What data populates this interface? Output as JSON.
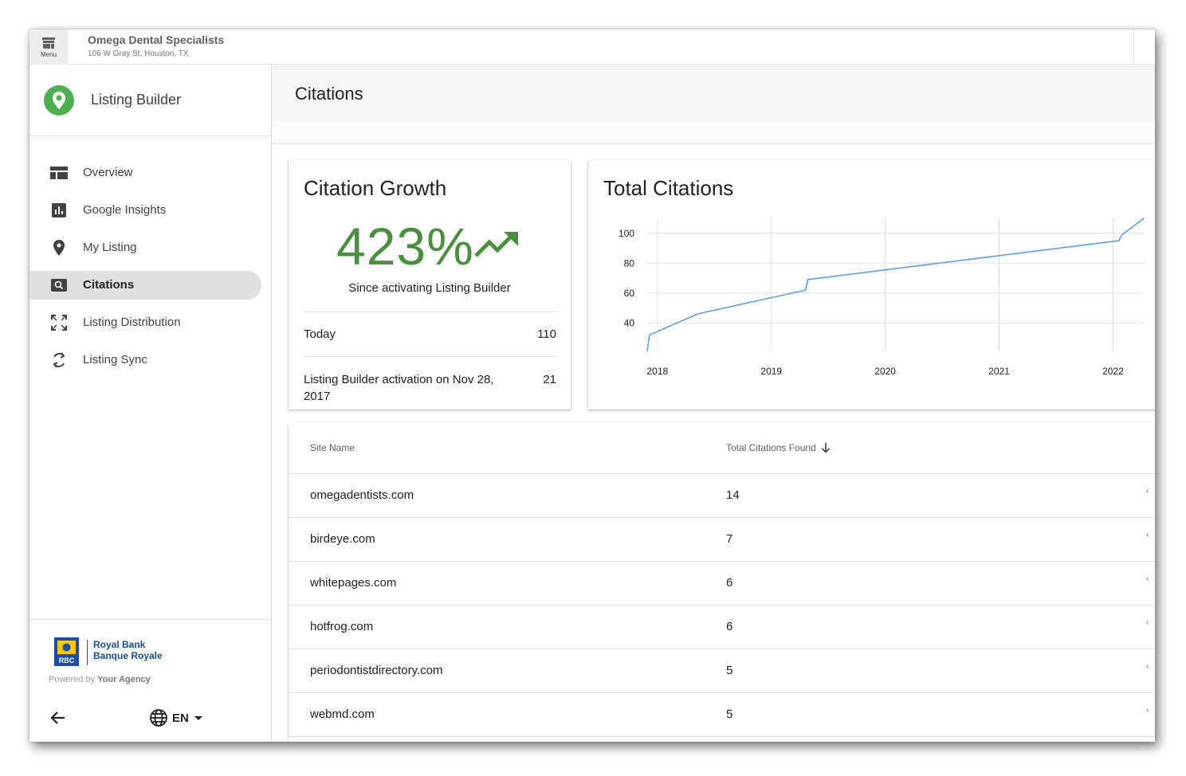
{
  "topbar": {
    "menu_label": "Menu",
    "business_name": "Omega Dental Specialists",
    "business_address": "106 W Gray St, Houston, TX"
  },
  "sidebar": {
    "app_title": "Listing Builder",
    "items": [
      {
        "label": "Overview",
        "icon": "dashboard-icon",
        "active": false
      },
      {
        "label": "Google Insights",
        "icon": "bar-chart-icon",
        "active": false
      },
      {
        "label": "My Listing",
        "icon": "location-pin-icon",
        "active": false
      },
      {
        "label": "Citations",
        "icon": "search-box-icon",
        "active": true
      },
      {
        "label": "Listing Distribution",
        "icon": "expand-arrows-icon",
        "active": false
      },
      {
        "label": "Listing Sync",
        "icon": "sync-icon",
        "active": false
      }
    ],
    "partner_line1": "Royal Bank",
    "partner_line2": "Banque Royale",
    "partner_logo_text": "RBC",
    "powered_prefix": "Powered by",
    "powered_agency": "Your Agency",
    "language": "EN"
  },
  "page": {
    "title": "Citations"
  },
  "growth": {
    "title": "Citation Growth",
    "percent": "423%",
    "caption": "Since activating Listing Builder",
    "rows": [
      {
        "label": "Today",
        "value": "110"
      },
      {
        "label": "Listing Builder activation on Nov 28, 2017",
        "value": "21"
      }
    ]
  },
  "total": {
    "title": "Total Citations"
  },
  "chart_data": {
    "type": "line",
    "title": "Total Citations",
    "xlabel": "",
    "ylabel": "",
    "x_ticks": [
      "2018",
      "2019",
      "2020",
      "2021",
      "2022"
    ],
    "y_ticks": [
      40,
      60,
      80,
      100
    ],
    "xlim": [
      2017.91,
      2022.27
    ],
    "ylim": [
      21,
      110
    ],
    "grid": true,
    "color": "#5b9fdc",
    "series": [
      {
        "x": [
          2017.91,
          2017.93,
          2018.35,
          2019.3,
          2019.32,
          2022.05,
          2022.08,
          2022.27
        ],
        "y": [
          21,
          32,
          46,
          62,
          69,
          95,
          99,
          110
        ]
      }
    ]
  },
  "table": {
    "columns": [
      "Site Name",
      "Total Citations Found"
    ],
    "rows": [
      {
        "site": "omegadentists.com",
        "count": "14"
      },
      {
        "site": "birdeye.com",
        "count": "7"
      },
      {
        "site": "whitepages.com",
        "count": "6"
      },
      {
        "site": "hotfrog.com",
        "count": "6"
      },
      {
        "site": "periodontistdirectory.com",
        "count": "5"
      },
      {
        "site": "webmd.com",
        "count": "5"
      }
    ]
  },
  "colors": {
    "growth_green": "#4a8f3f",
    "brand_green": "#4caf50",
    "partner_blue": "#1c4da0"
  }
}
